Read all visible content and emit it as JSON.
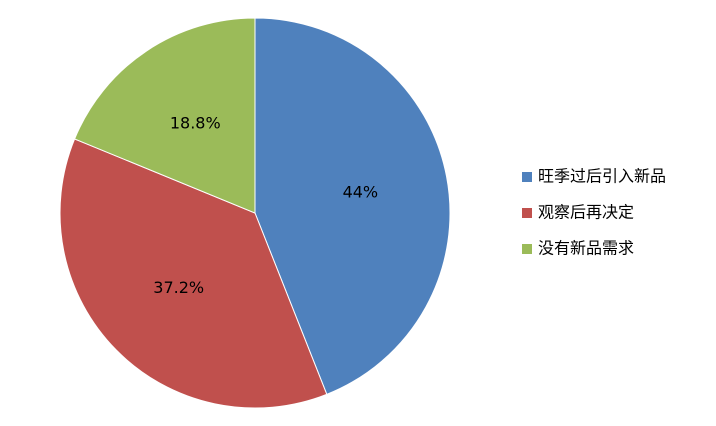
{
  "chart_data": {
    "type": "pie",
    "categories": [
      "旺季过后引入新品",
      "观察后再决定",
      "没有新品需求"
    ],
    "values": [
      44,
      37.2,
      18.8
    ],
    "value_labels": [
      "44%",
      "37.2%",
      "18.8%"
    ],
    "colors": [
      "#4f81bd",
      "#c0504d",
      "#9bbb59"
    ],
    "legend": "right"
  }
}
